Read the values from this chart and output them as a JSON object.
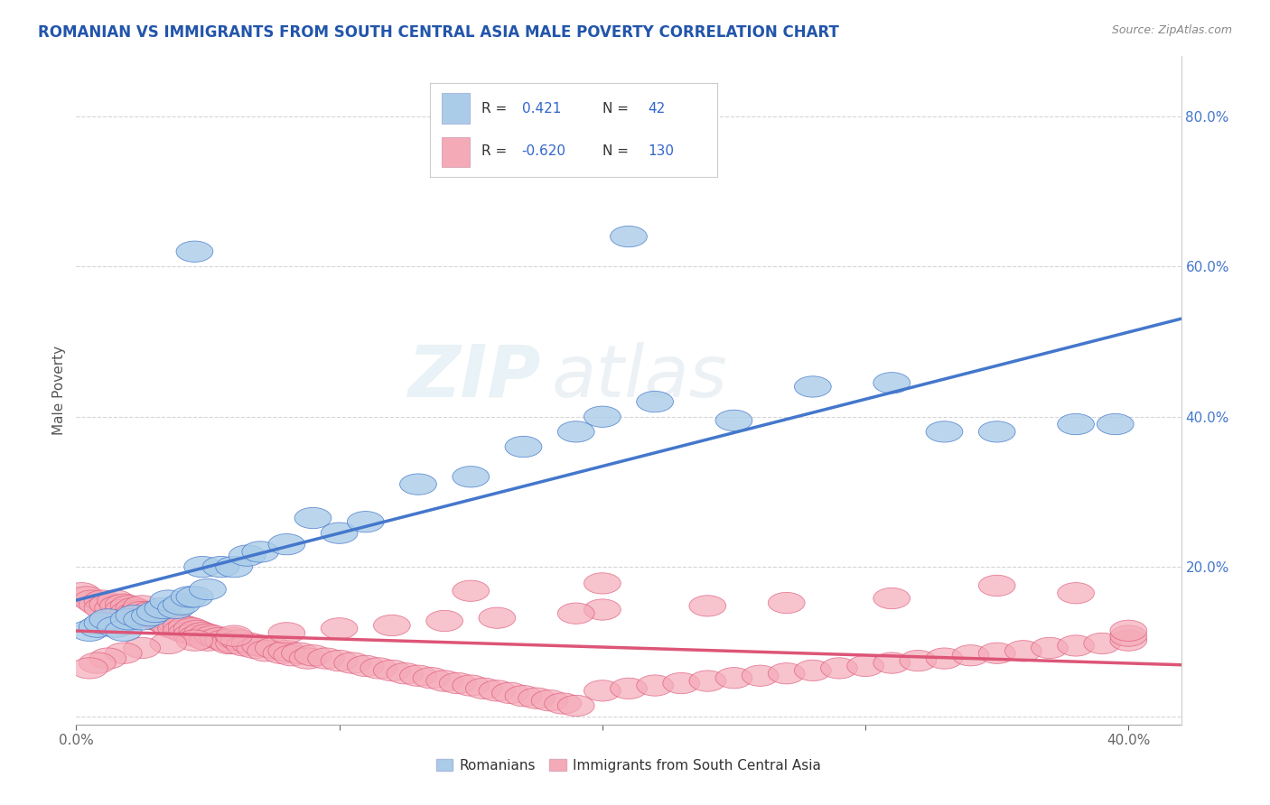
{
  "title": "ROMANIAN VS IMMIGRANTS FROM SOUTH CENTRAL ASIA MALE POVERTY CORRELATION CHART",
  "source": "Source: ZipAtlas.com",
  "ylabel": "Male Poverty",
  "xlim": [
    0.0,
    0.42
  ],
  "ylim": [
    -0.01,
    0.88
  ],
  "xticks": [
    0.0,
    0.1,
    0.2,
    0.3,
    0.4
  ],
  "yticks": [
    0.0,
    0.2,
    0.4,
    0.6,
    0.8
  ],
  "xticklabels": [
    "0.0%",
    "",
    "",
    "",
    "40.0%"
  ],
  "yticklabels_right": [
    "",
    "20.0%",
    "40.0%",
    "60.0%",
    "80.0%"
  ],
  "legend_labels": [
    "Romanians",
    "Immigrants from South Central Asia"
  ],
  "r1": 0.421,
  "n1": 42,
  "r2": -0.62,
  "n2": 130,
  "color1": "#aacce8",
  "color2": "#f5aab8",
  "line1_color": "#4477cc",
  "line2_color": "#dd5577",
  "background_color": "#ffffff",
  "watermark": "ZIPatlas",
  "title_color": "#2255aa",
  "grid_color": "#cccccc",
  "scatter1_x": [
    0.005,
    0.008,
    0.01,
    0.012,
    0.015,
    0.018,
    0.02,
    0.022,
    0.025,
    0.028,
    0.03,
    0.033,
    0.035,
    0.038,
    0.04,
    0.043,
    0.045,
    0.048,
    0.05,
    0.055,
    0.06,
    0.065,
    0.07,
    0.08,
    0.09,
    0.1,
    0.11,
    0.13,
    0.15,
    0.17,
    0.19,
    0.2,
    0.22,
    0.25,
    0.28,
    0.31,
    0.33,
    0.35,
    0.38,
    0.395,
    0.21,
    0.045
  ],
  "scatter1_y": [
    0.115,
    0.12,
    0.125,
    0.13,
    0.12,
    0.115,
    0.13,
    0.135,
    0.13,
    0.135,
    0.14,
    0.145,
    0.155,
    0.145,
    0.15,
    0.16,
    0.16,
    0.2,
    0.17,
    0.2,
    0.2,
    0.215,
    0.22,
    0.23,
    0.265,
    0.245,
    0.26,
    0.31,
    0.32,
    0.36,
    0.38,
    0.4,
    0.42,
    0.395,
    0.44,
    0.445,
    0.38,
    0.38,
    0.39,
    0.39,
    0.64,
    0.62
  ],
  "scatter2_x": [
    0.002,
    0.004,
    0.006,
    0.008,
    0.01,
    0.01,
    0.012,
    0.014,
    0.015,
    0.016,
    0.018,
    0.018,
    0.02,
    0.02,
    0.022,
    0.022,
    0.024,
    0.025,
    0.025,
    0.026,
    0.028,
    0.028,
    0.03,
    0.03,
    0.032,
    0.032,
    0.034,
    0.034,
    0.035,
    0.035,
    0.036,
    0.036,
    0.038,
    0.038,
    0.04,
    0.04,
    0.042,
    0.042,
    0.044,
    0.044,
    0.046,
    0.046,
    0.048,
    0.048,
    0.05,
    0.05,
    0.052,
    0.054,
    0.056,
    0.058,
    0.06,
    0.06,
    0.062,
    0.064,
    0.066,
    0.068,
    0.07,
    0.072,
    0.075,
    0.078,
    0.08,
    0.082,
    0.085,
    0.088,
    0.09,
    0.095,
    0.1,
    0.105,
    0.11,
    0.115,
    0.12,
    0.125,
    0.13,
    0.135,
    0.14,
    0.145,
    0.15,
    0.155,
    0.16,
    0.165,
    0.17,
    0.175,
    0.18,
    0.185,
    0.19,
    0.2,
    0.21,
    0.22,
    0.23,
    0.24,
    0.25,
    0.26,
    0.27,
    0.28,
    0.29,
    0.3,
    0.31,
    0.32,
    0.33,
    0.34,
    0.35,
    0.36,
    0.37,
    0.38,
    0.39,
    0.4,
    0.4,
    0.4,
    0.35,
    0.38,
    0.31,
    0.27,
    0.24,
    0.2,
    0.19,
    0.16,
    0.14,
    0.12,
    0.1,
    0.08,
    0.06,
    0.045,
    0.035,
    0.025,
    0.018,
    0.012,
    0.008,
    0.005,
    0.2,
    0.15
  ],
  "scatter2_y": [
    0.165,
    0.16,
    0.155,
    0.15,
    0.155,
    0.145,
    0.15,
    0.145,
    0.155,
    0.148,
    0.15,
    0.143,
    0.148,
    0.14,
    0.145,
    0.138,
    0.142,
    0.148,
    0.14,
    0.135,
    0.14,
    0.133,
    0.138,
    0.13,
    0.135,
    0.128,
    0.132,
    0.125,
    0.13,
    0.122,
    0.128,
    0.12,
    0.125,
    0.118,
    0.122,
    0.115,
    0.12,
    0.112,
    0.118,
    0.11,
    0.115,
    0.108,
    0.112,
    0.105,
    0.11,
    0.102,
    0.108,
    0.105,
    0.102,
    0.098,
    0.105,
    0.098,
    0.102,
    0.095,
    0.098,
    0.092,
    0.095,
    0.088,
    0.092,
    0.085,
    0.088,
    0.082,
    0.085,
    0.078,
    0.082,
    0.078,
    0.075,
    0.072,
    0.068,
    0.065,
    0.062,
    0.058,
    0.055,
    0.052,
    0.048,
    0.045,
    0.042,
    0.038,
    0.035,
    0.032,
    0.028,
    0.025,
    0.022,
    0.018,
    0.015,
    0.035,
    0.038,
    0.042,
    0.045,
    0.048,
    0.052,
    0.055,
    0.058,
    0.062,
    0.065,
    0.068,
    0.072,
    0.075,
    0.078,
    0.082,
    0.085,
    0.088,
    0.092,
    0.095,
    0.098,
    0.102,
    0.108,
    0.115,
    0.175,
    0.165,
    0.158,
    0.152,
    0.148,
    0.143,
    0.138,
    0.132,
    0.128,
    0.122,
    0.118,
    0.112,
    0.108,
    0.102,
    0.098,
    0.092,
    0.085,
    0.078,
    0.072,
    0.065,
    0.178,
    0.168
  ]
}
